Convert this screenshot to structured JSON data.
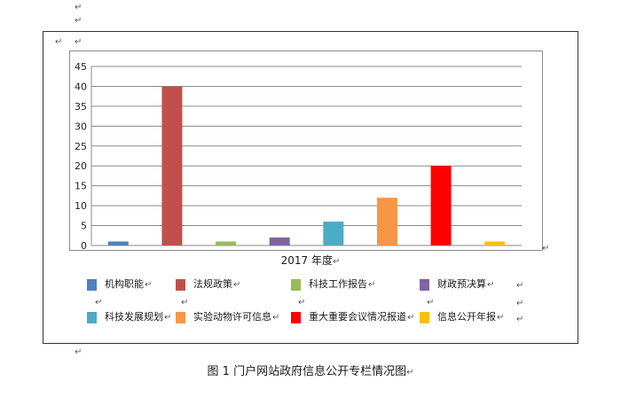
{
  "return_mark": "↵",
  "chart_data": {
    "type": "bar",
    "xlabel": "2017 年度",
    "ylim": [
      0,
      45
    ],
    "yticks": [
      0,
      5,
      10,
      15,
      20,
      25,
      30,
      35,
      40,
      45
    ],
    "grid": true,
    "legend_position": "bottom",
    "series": [
      {
        "name": "机构职能",
        "value": 1,
        "color": "#4f81bd"
      },
      {
        "name": "法规政策",
        "value": 40,
        "color": "#c0504d"
      },
      {
        "name": "科技工作报告",
        "value": 1,
        "color": "#9bbb59"
      },
      {
        "name": "财政预决算",
        "value": 2,
        "color": "#8064a2"
      },
      {
        "name": "科技发展规划",
        "value": 6,
        "color": "#4bacc6"
      },
      {
        "name": "实验动物许可信息",
        "value": 12,
        "color": "#f79646"
      },
      {
        "name": "重大重要会议情况报道",
        "value": 20,
        "color": "#ff0000"
      },
      {
        "name": "信息公开年报",
        "value": 1,
        "color": "#ffc000"
      }
    ]
  },
  "caption": "图 1 门户网站政府信息公开专栏情况图"
}
